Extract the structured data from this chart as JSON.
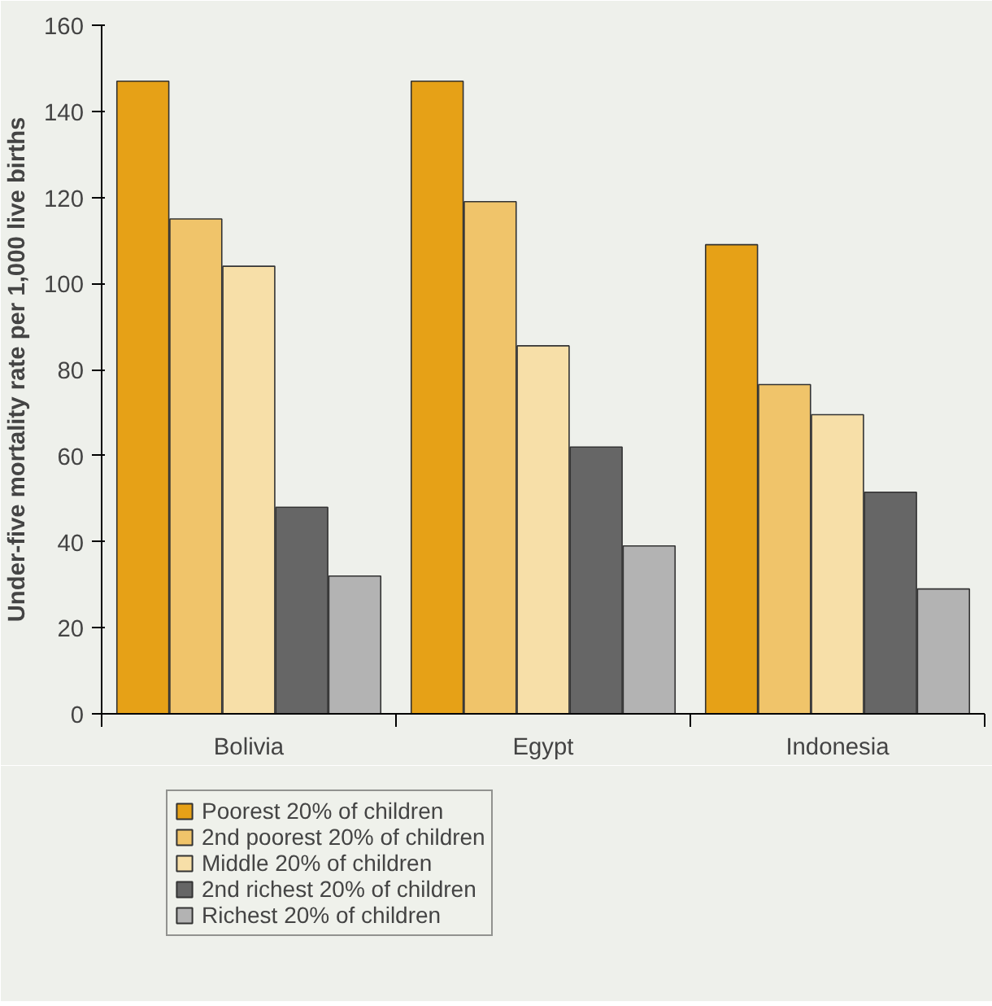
{
  "chart_data": {
    "type": "bar",
    "ylabel": "Under-five mortality rate per 1,000 live births",
    "categories": [
      "Bolivia",
      "Egypt",
      "Indonesia"
    ],
    "series": [
      {
        "name": "Poorest 20% of children",
        "color": "#e6a117",
        "values": [
          147,
          147,
          109
        ]
      },
      {
        "name": "2nd poorest 20% of children",
        "color": "#f0c46a",
        "values": [
          115,
          119,
          76.5
        ]
      },
      {
        "name": "Middle 20% of children",
        "color": "#f7dfa8",
        "values": [
          104,
          85.5,
          69.5
        ]
      },
      {
        "name": "2nd richest 20% of children",
        "color": "#666666",
        "values": [
          48,
          62,
          51.5
        ]
      },
      {
        "name": "Richest 20% of children",
        "color": "#b3b3b3",
        "values": [
          32,
          39,
          29
        ]
      }
    ],
    "ylim": [
      0,
      160
    ],
    "yticks": [
      0,
      20,
      40,
      60,
      80,
      100,
      120,
      140,
      160
    ],
    "grid": false,
    "legend": "bottom left"
  }
}
